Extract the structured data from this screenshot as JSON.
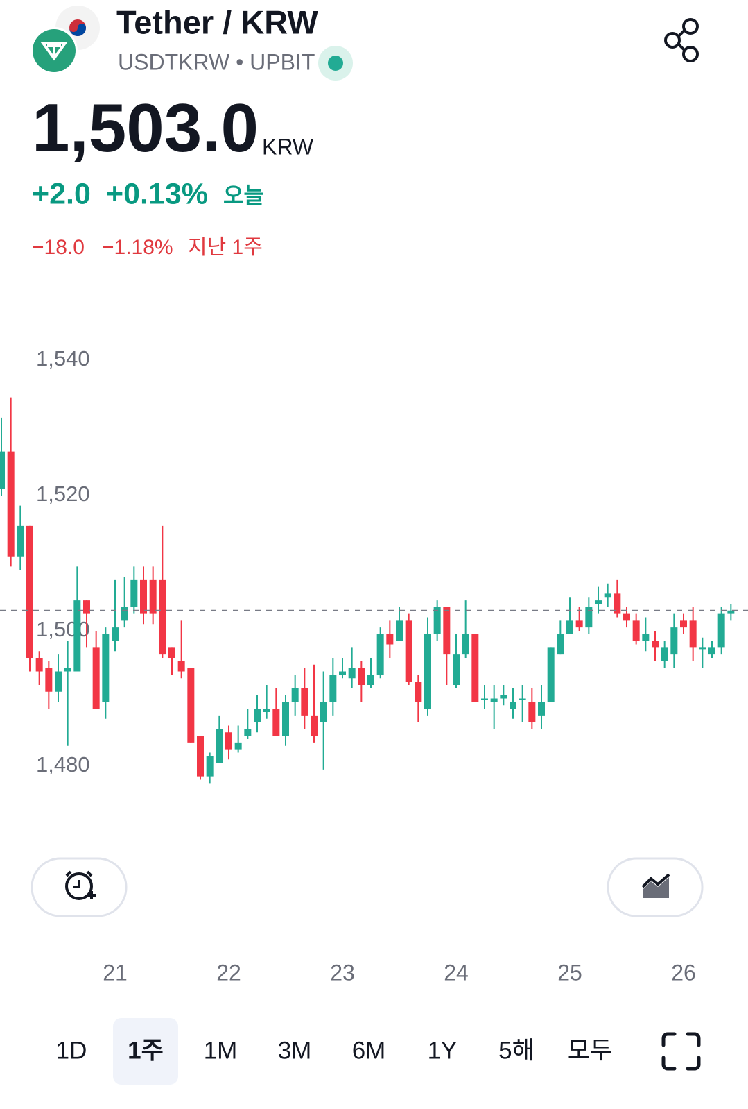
{
  "header": {
    "title": "Tether / KRW",
    "subtitle": "USDTKRW • UPBIT",
    "price": "1,503.0",
    "currency": "KRW",
    "change_today": "+2.0",
    "change_today_pct": "+0.13%",
    "today_label": "오늘",
    "change_week": "−18.0",
    "change_week_pct": "−1.18%",
    "week_label": "지난 1주"
  },
  "chart_data": {
    "type": "candlestick",
    "up_color": "#22ab94",
    "down_color": "#f23645",
    "categories": [
      null,
      null,
      null,
      null,
      null,
      null,
      null,
      null,
      null,
      null,
      null,
      null,
      "21",
      null,
      null,
      null,
      null,
      null,
      null,
      null,
      null,
      null,
      null,
      null,
      "22",
      null,
      null,
      null,
      null,
      null,
      null,
      null,
      null,
      null,
      null,
      null,
      "23",
      null,
      null,
      null,
      null,
      null,
      null,
      null,
      null,
      null,
      null,
      null,
      "24",
      null,
      null,
      null,
      null,
      null,
      null,
      null,
      null,
      null,
      null,
      null,
      "25",
      null,
      null,
      null,
      null,
      null,
      null,
      null,
      null,
      null,
      null,
      null,
      "26",
      null,
      null,
      null,
      null,
      null
    ],
    "open": [
      1521,
      1526.5,
      1511,
      1515.5,
      1496,
      1494.5,
      1491,
      1494,
      1494,
      1504.5,
      1497.5,
      1489.5,
      1498.5,
      1501.5,
      1503.5,
      1507.5,
      1507.5,
      1507.5,
      1497.5,
      1495.5,
      1494.5,
      1484.5,
      1478.5,
      1480.5,
      1485,
      1482.5,
      1484.5,
      1486.5,
      1488,
      1488.5,
      1484.5,
      1489.5,
      1491.5,
      1487.5,
      1486.5,
      1489.5,
      1493.5,
      1493,
      1494.5,
      1492,
      1493.5,
      1499.5,
      1498.5,
      1501.5,
      1492.5,
      1488.5,
      1499.5,
      1503.5,
      1492,
      1496.5,
      1499.5,
      1490,
      1489.5,
      1490,
      1488.5,
      1490,
      1489.5,
      1487.5,
      1489.5,
      1496.5,
      1499.5,
      1501.5,
      1500.5,
      1504,
      1505,
      1505.5,
      1502.5,
      1501.5,
      1498.5,
      1498.5,
      1495.5,
      1496.5,
      1501.5,
      1501.5,
      1497.5,
      1496.5,
      1497.5,
      1502.5
    ],
    "high": [
      1531.5,
      1534.5,
      1518.5,
      1515.5,
      1497,
      1495.5,
      1496.5,
      1498.5,
      1509.5,
      1504.5,
      1500,
      1500.5,
      1507.5,
      1508,
      1509.5,
      1509.5,
      1509.5,
      1515.5,
      1497.5,
      1501.5,
      1494.5,
      1484.5,
      1482,
      1487.5,
      1486,
      1486,
      1488.5,
      1490.5,
      1492,
      1491.5,
      1490.5,
      1493.5,
      1494.5,
      1495,
      1494,
      1496,
      1496,
      1497.5,
      1495.5,
      1496,
      1500.5,
      1501.5,
      1503.5,
      1502.5,
      1493.5,
      1502,
      1504.5,
      1503.5,
      1499.5,
      1504.5,
      1499.5,
      1492,
      1492,
      1492,
      1491.5,
      1492,
      1491.5,
      1492,
      1497.5,
      1501.5,
      1505,
      1503.5,
      1505,
      1506.5,
      1507,
      1507.5,
      1503.5,
      1502.5,
      1502,
      1500,
      1498.5,
      1502.5,
      1502.5,
      1503.5,
      1499,
      1498.5,
      1503.5,
      1504
    ],
    "low": [
      1520,
      1509.5,
      1509,
      1494,
      1492,
      1488.5,
      1489.5,
      1483,
      1494,
      1497.5,
      1488.5,
      1487,
      1497,
      1500.5,
      1502.5,
      1501,
      1501,
      1496,
      1493.5,
      1493,
      1483.5,
      1478,
      1477.5,
      1480.5,
      1481,
      1482,
      1484,
      1485,
      1487,
      1484.5,
      1483,
      1487.5,
      1485.5,
      1483.5,
      1479.5,
      1487.5,
      1493,
      1491.5,
      1489.5,
      1491.5,
      1493,
      1496,
      1498.5,
      1492,
      1486.5,
      1487.5,
      1498.5,
      1492,
      1491.5,
      1496,
      1489.5,
      1488.5,
      1485.5,
      1489,
      1487,
      1486.5,
      1485.5,
      1485.5,
      1489.5,
      1496.5,
      1499.5,
      1500,
      1499.5,
      1502.5,
      1503.5,
      1502,
      1500.5,
      1498,
      1497,
      1495.5,
      1494.5,
      1494.5,
      1499.5,
      1495.5,
      1494.5,
      1496,
      1496.5,
      1501.5
    ],
    "close": [
      1526.5,
      1511,
      1515.5,
      1496,
      1494,
      1491,
      1494,
      1494.5,
      1504.5,
      1502.5,
      1488.5,
      1499.5,
      1500.5,
      1503.5,
      1507.5,
      1502.5,
      1502.5,
      1496.5,
      1496,
      1494,
      1483.5,
      1478.5,
      1481.5,
      1485.5,
      1482.5,
      1483.5,
      1485.5,
      1488.5,
      1488.5,
      1484.5,
      1489.5,
      1491.5,
      1487.5,
      1484.5,
      1489.5,
      1493.5,
      1494,
      1494.5,
      1492,
      1493.5,
      1499.5,
      1498,
      1501.5,
      1492.5,
      1489.5,
      1499.5,
      1503.5,
      1496.5,
      1496.5,
      1499.5,
      1489.5,
      1490,
      1490,
      1490.5,
      1489.5,
      1490,
      1486.5,
      1489.5,
      1497.5,
      1499.5,
      1501.5,
      1500.5,
      1503.5,
      1504.5,
      1505.5,
      1502.5,
      1501.5,
      1498.5,
      1499.5,
      1497.5,
      1497.5,
      1500.5,
      1500.5,
      1497.5,
      1497.5,
      1497.5,
      1502.5,
      1503
    ],
    "ylim": [
      1472,
      1548
    ],
    "yticks": [
      {
        "value": 1480,
        "label": "1,480"
      },
      {
        "value": 1500,
        "label": "1,500"
      },
      {
        "value": 1520,
        "label": "1,520"
      },
      {
        "value": 1540,
        "label": "1,540"
      }
    ]
  },
  "ranges": {
    "items": [
      "1D",
      "1주",
      "1M",
      "3M",
      "6M",
      "1Y",
      "5해",
      "모두"
    ],
    "selected": 1
  }
}
